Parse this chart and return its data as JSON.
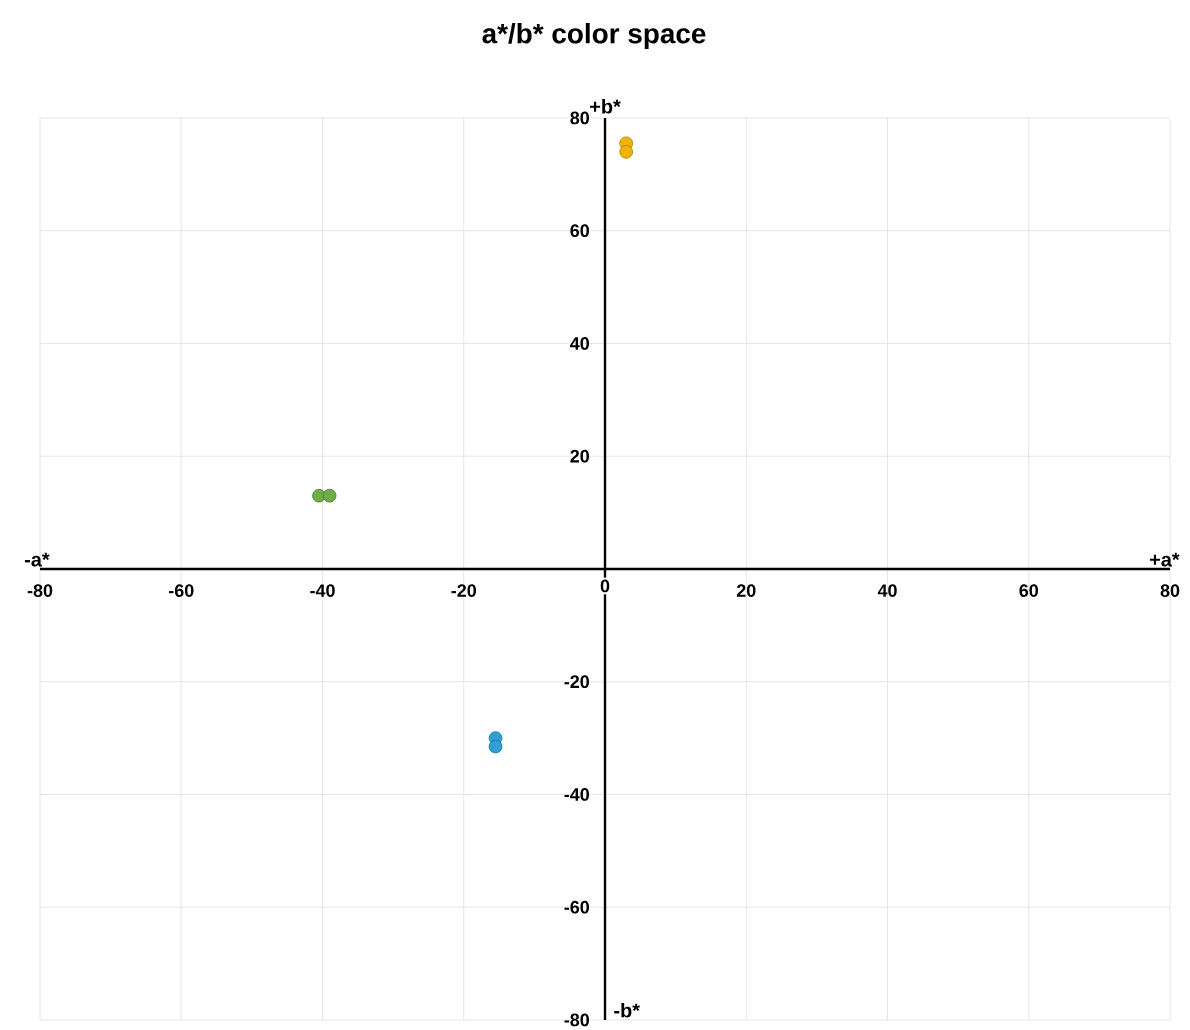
{
  "chart_data": {
    "type": "scatter",
    "title": "a*/b* color space",
    "x": [
      -40.5,
      -39,
      -15.5,
      -15.5,
      3,
      3
    ],
    "values": [
      13,
      13,
      -30,
      -31.5,
      75.5,
      74
    ],
    "colors": [
      "#70ad47",
      "#70ad47",
      "#2e9fd8",
      "#2e9fd8",
      "#f0b400",
      "#f0b400"
    ],
    "xlim": [
      -80,
      80
    ],
    "ylim": [
      -80,
      80
    ],
    "xticks": [
      -80,
      -60,
      -40,
      -20,
      0,
      20,
      40,
      60,
      80
    ],
    "yticks": [
      -80,
      -60,
      -40,
      -20,
      20,
      40,
      60,
      80
    ],
    "grid": true,
    "annotations": [
      "-a*",
      "+a*",
      "+b*",
      "-b*"
    ]
  }
}
